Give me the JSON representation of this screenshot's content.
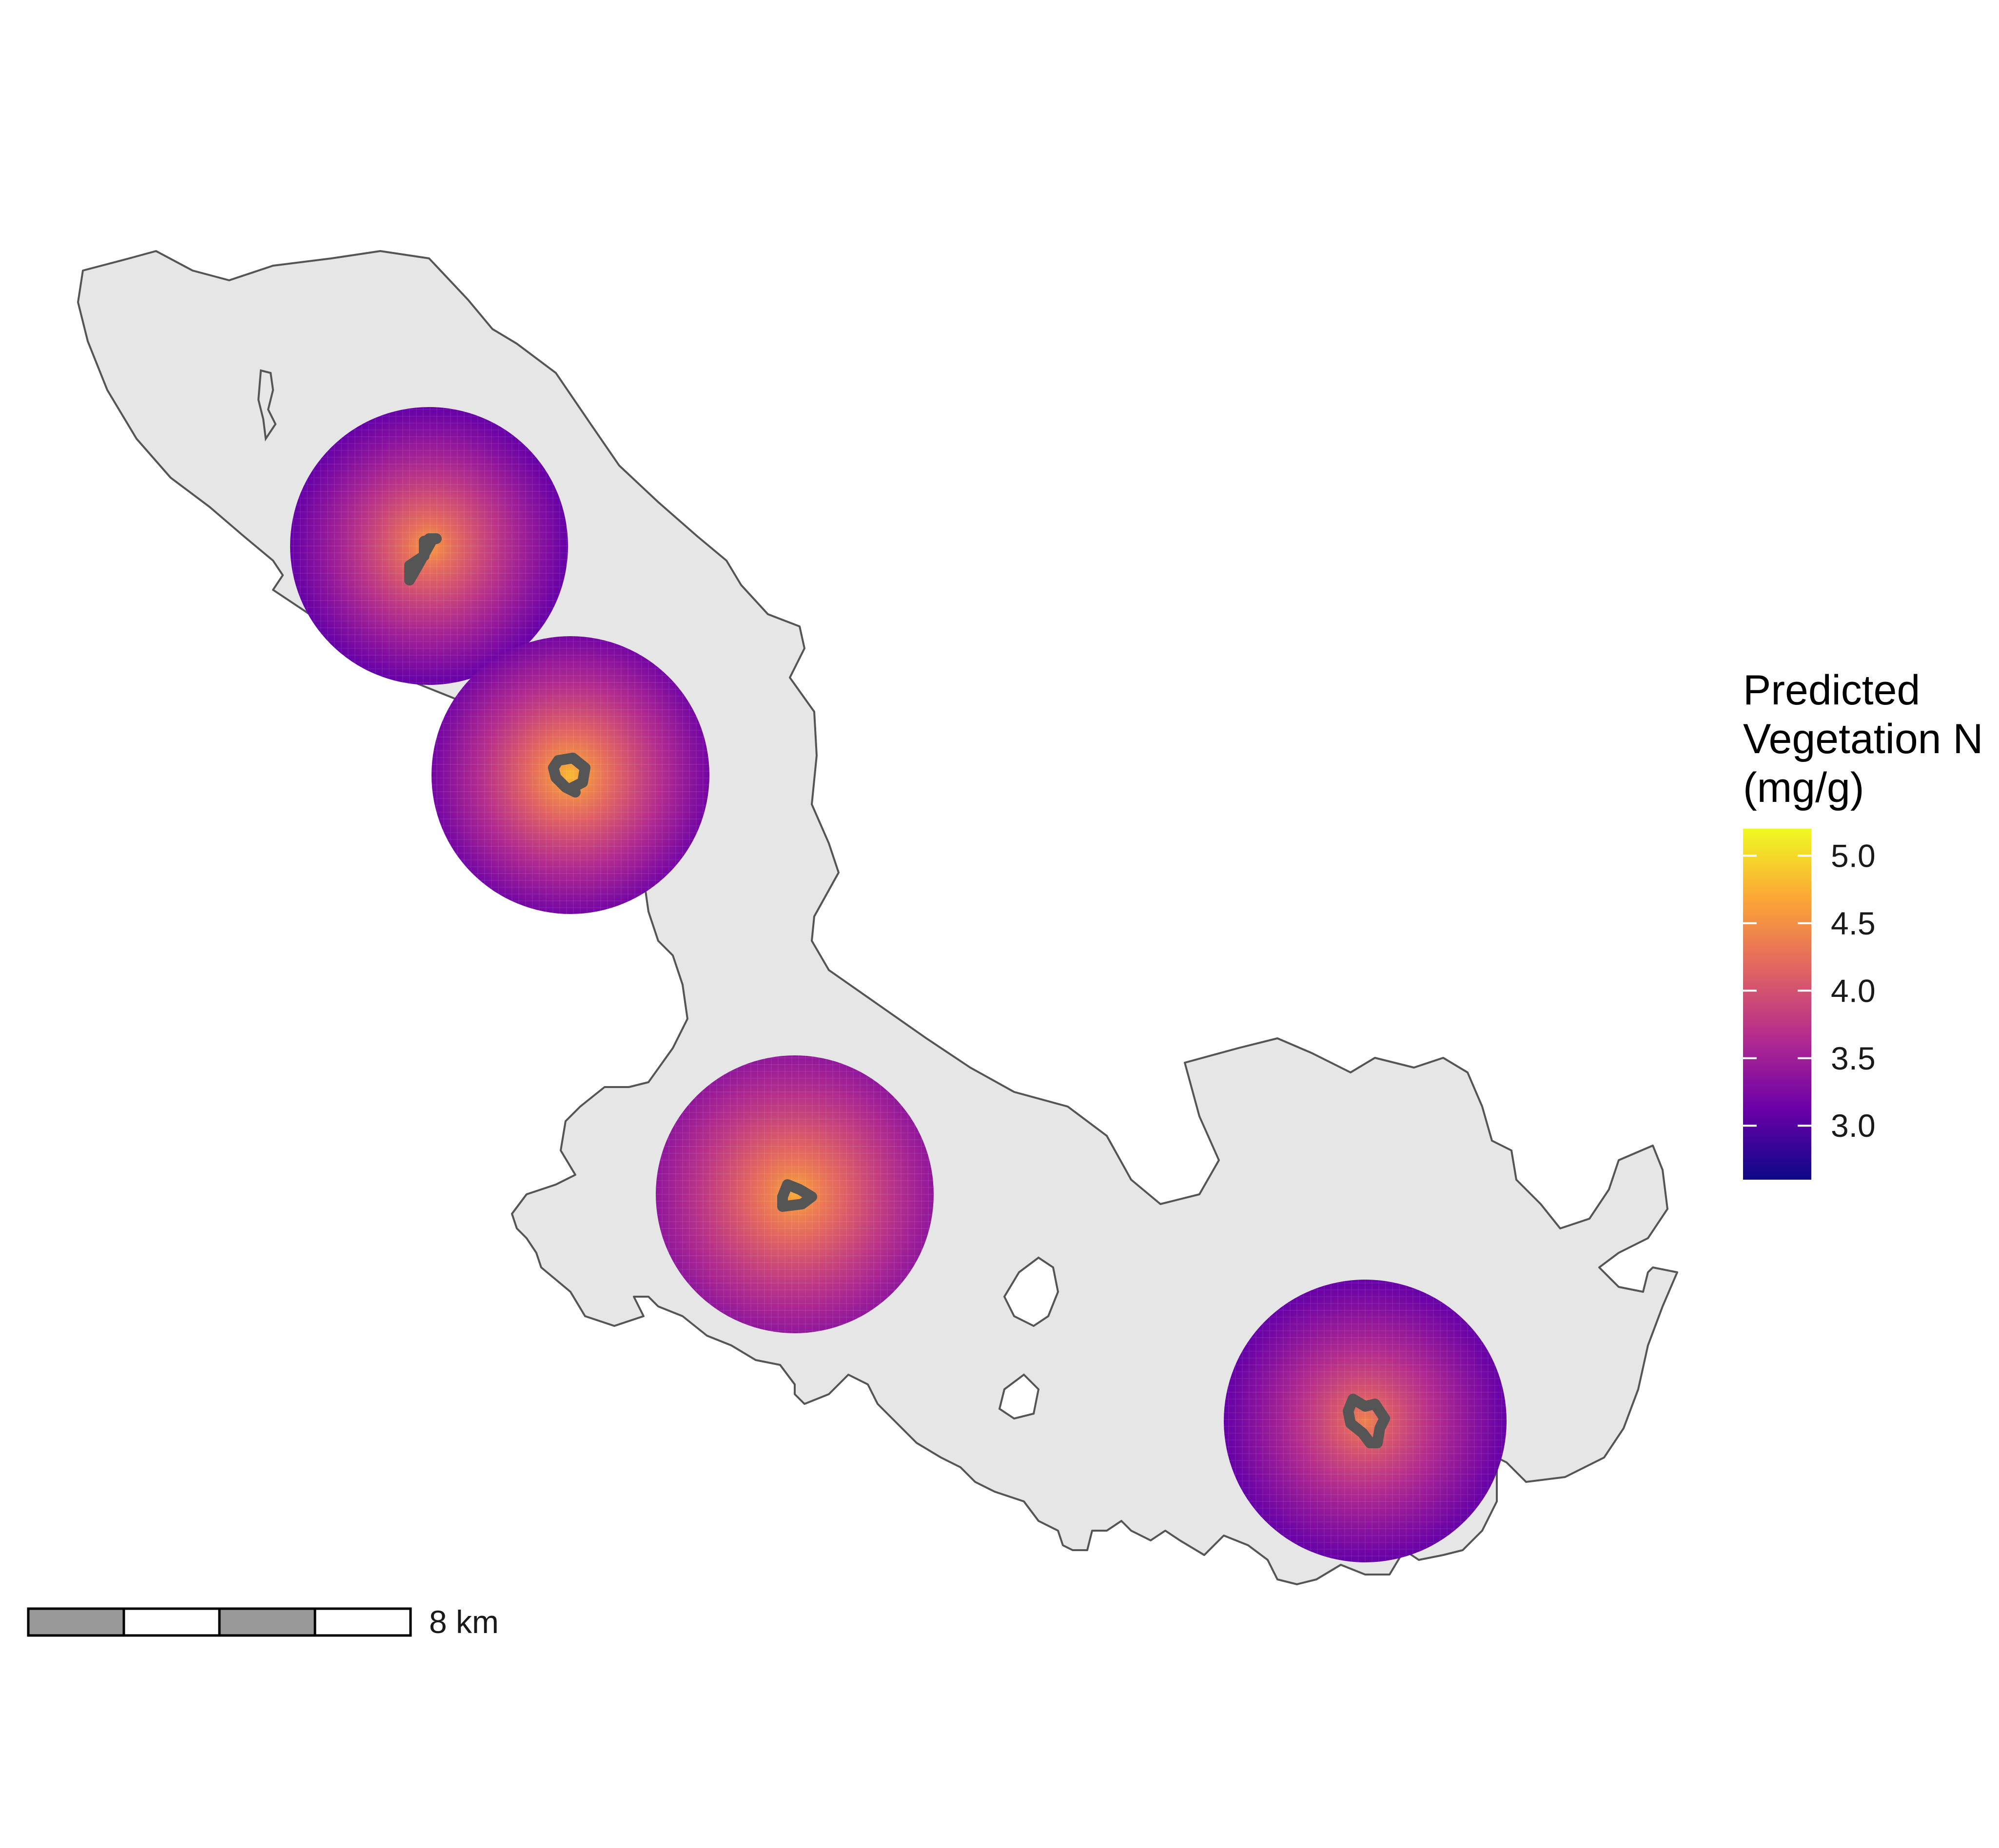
{
  "legend": {
    "title_lines": [
      "Predicted",
      "Vegetation N",
      "(mg/g)"
    ],
    "min": 2.6,
    "max": 5.2,
    "ticks": [
      {
        "value": 5.0,
        "label": "5.0"
      },
      {
        "value": 4.5,
        "label": "4.5"
      },
      {
        "value": 4.0,
        "label": "4.0"
      },
      {
        "value": 3.5,
        "label": "3.5"
      },
      {
        "value": 3.0,
        "label": "3.0"
      }
    ],
    "palette": [
      "#0d0887",
      "#6a00a8",
      "#b12a90",
      "#e16462",
      "#fca636",
      "#f0f921"
    ]
  },
  "scale_bar": {
    "label": "8 km",
    "segment_colors": [
      "#999999",
      "#ffffff",
      "#999999",
      "#ffffff"
    ]
  },
  "map": {
    "land_color": "#e6e6e6",
    "outline_color": "#555555",
    "site_outline_color": "#555555"
  },
  "sites": [
    {
      "id": "site-1",
      "peak": 4.6,
      "edge": 3.1
    },
    {
      "id": "site-2",
      "peak": 4.8,
      "edge": 3.2
    },
    {
      "id": "site-3",
      "peak": 4.7,
      "edge": 3.4
    },
    {
      "id": "site-4",
      "peak": 4.4,
      "edge": 3.1
    }
  ]
}
